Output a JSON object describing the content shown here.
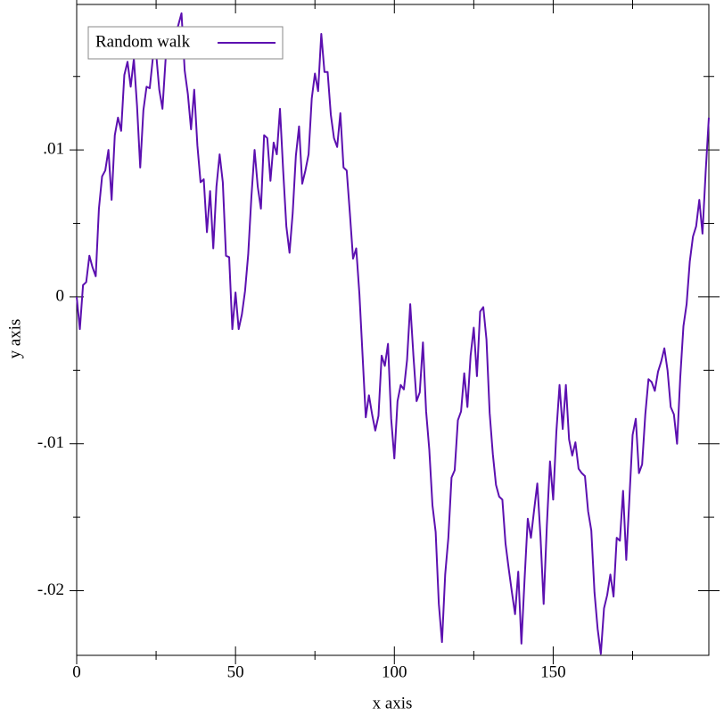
{
  "chart_data": {
    "type": "line",
    "x_label": "x axis",
    "y_label": "y axis",
    "x": [
      0,
      1,
      2,
      3,
      4,
      5,
      6,
      7,
      8,
      9,
      10,
      11,
      12,
      13,
      14,
      15,
      16,
      17,
      18,
      19,
      20,
      21,
      22,
      23,
      24,
      25,
      26,
      27,
      28,
      29,
      30,
      31,
      32,
      33,
      34,
      35,
      36,
      37,
      38,
      39,
      40,
      41,
      42,
      43,
      44,
      45,
      46,
      47,
      48,
      49,
      50,
      51,
      52,
      53,
      54,
      55,
      56,
      57,
      58,
      59,
      60,
      61,
      62,
      63,
      64,
      65,
      66,
      67,
      68,
      69,
      70,
      71,
      72,
      73,
      74,
      75,
      76,
      77,
      78,
      79,
      80,
      81,
      82,
      83,
      84,
      85,
      86,
      87,
      88,
      89,
      90,
      91,
      92,
      93,
      94,
      95,
      96,
      97,
      98,
      99,
      100,
      101,
      102,
      103,
      104,
      105,
      106,
      107,
      108,
      109,
      110,
      111,
      112,
      113,
      114,
      115,
      116,
      117,
      118,
      119,
      120,
      121,
      122,
      123,
      124,
      125,
      126,
      127,
      128,
      129,
      130,
      131,
      132,
      133,
      134,
      135,
      136,
      137,
      138,
      139,
      140,
      141,
      142,
      143,
      144,
      145,
      146,
      147,
      148,
      149,
      150,
      151,
      152,
      153,
      154,
      155,
      156,
      157,
      158,
      159,
      160,
      161,
      162,
      163,
      164,
      165,
      166,
      167,
      168,
      169,
      170,
      171,
      172,
      173,
      174,
      175,
      176,
      177,
      178,
      179,
      180,
      181,
      182,
      183,
      184,
      185,
      186,
      187,
      188,
      189,
      190,
      191,
      192,
      193,
      194,
      195,
      196,
      197,
      198,
      199
    ],
    "series": [
      {
        "name": "Random walk",
        "color": "#5c10b0",
        "values": [
          0,
          -0.0022,
          0.0008,
          0.001,
          0.0028,
          0.002,
          0.0014,
          0.006,
          0.0082,
          0.0086,
          0.01,
          0.0066,
          0.011,
          0.0122,
          0.0113,
          0.0151,
          0.016,
          0.0143,
          0.0162,
          0.013,
          0.0088,
          0.0127,
          0.0143,
          0.0142,
          0.0163,
          0.0166,
          0.0141,
          0.0128,
          0.0162,
          0.0181,
          0.0179,
          0.0178,
          0.0185,
          0.0193,
          0.0154,
          0.0138,
          0.0114,
          0.0141,
          0.0103,
          0.0078,
          0.008,
          0.0044,
          0.0072,
          0.0033,
          0.0075,
          0.0097,
          0.0078,
          0.0028,
          0.0027,
          -0.0022,
          0.0003,
          -0.0022,
          -0.0012,
          0.0004,
          0.0029,
          0.0068,
          0.01,
          0.0075,
          0.006,
          0.011,
          0.0108,
          0.0079,
          0.0105,
          0.0097,
          0.0128,
          0.0086,
          0.0048,
          0.003,
          0.0057,
          0.0096,
          0.0116,
          0.0077,
          0.0086,
          0.0097,
          0.0135,
          0.0152,
          0.014,
          0.0179,
          0.0153,
          0.0153,
          0.0124,
          0.0108,
          0.0102,
          0.0125,
          0.0088,
          0.0086,
          0.0057,
          0.0026,
          0.0033,
          0.0002,
          -0.004,
          -0.0082,
          -0.0067,
          -0.008,
          -0.0091,
          -0.0081,
          -0.004,
          -0.0047,
          -0.0032,
          -0.0083,
          -0.011,
          -0.0071,
          -0.006,
          -0.0063,
          -0.0043,
          -0.0005,
          -0.004,
          -0.0071,
          -0.0065,
          -0.0031,
          -0.0078,
          -0.0104,
          -0.0142,
          -0.016,
          -0.0209,
          -0.0235,
          -0.0189,
          -0.0164,
          -0.0123,
          -0.0118,
          -0.0084,
          -0.0078,
          -0.0052,
          -0.0075,
          -0.004,
          -0.0021,
          -0.0054,
          -0.001,
          -0.0007,
          -0.0029,
          -0.0079,
          -0.0107,
          -0.0128,
          -0.0136,
          -0.0138,
          -0.0168,
          -0.0185,
          -0.0201,
          -0.0216,
          -0.0187,
          -0.0236,
          -0.0192,
          -0.0151,
          -0.0164,
          -0.0145,
          -0.0127,
          -0.0163,
          -0.0209,
          -0.0156,
          -0.0112,
          -0.0138,
          -0.0092,
          -0.006,
          -0.009,
          -0.006,
          -0.0097,
          -0.0108,
          -0.0099,
          -0.0117,
          -0.012,
          -0.0122,
          -0.0146,
          -0.0159,
          -0.0201,
          -0.0226,
          -0.0243,
          -0.0212,
          -0.0203,
          -0.0189,
          -0.0204,
          -0.0164,
          -0.0166,
          -0.0132,
          -0.0179,
          -0.0137,
          -0.0094,
          -0.0083,
          -0.012,
          -0.0114,
          -0.008,
          -0.0056,
          -0.0058,
          -0.0064,
          -0.0051,
          -0.0044,
          -0.0035,
          -0.005,
          -0.0075,
          -0.008,
          -0.01,
          -0.0055,
          -0.002,
          -0.0005,
          0.0024,
          0.0041,
          0.0048,
          0.0066,
          0.0043,
          0.0085,
          0.0122
        ]
      }
    ],
    "xlim": [
      0,
      199
    ],
    "ylim": [
      -0.0244,
      0.0199
    ],
    "xticks": [
      0,
      50,
      100,
      150
    ],
    "xminorticks": [
      25,
      75,
      125,
      175
    ],
    "yticks": [
      {
        "value": -0.02,
        "label": "-.02"
      },
      {
        "value": -0.01,
        "label": "-.01"
      },
      0,
      {
        "value": 0.01,
        "label": ".01"
      }
    ],
    "yminorticks": [
      -0.015,
      -0.005,
      0.005,
      0.015
    ],
    "legend": "top-left"
  }
}
